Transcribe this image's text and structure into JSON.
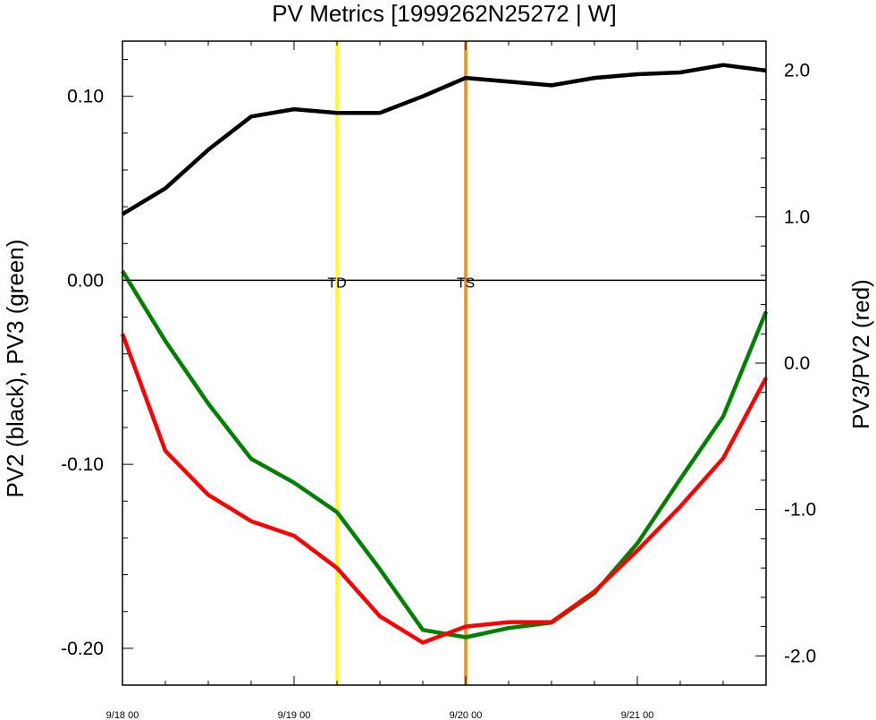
{
  "chart_data": {
    "type": "line",
    "title": "PV Metrics [1999262N25272 | W]",
    "ylabel_left": "PV2 (black), PV3 (green)",
    "ylabel_right": "PV3/PV2 (red)",
    "xlim": [
      0,
      3.75
    ],
    "ylim_left": [
      -0.22,
      0.13
    ],
    "ylim_right": [
      -2.2,
      2.2
    ],
    "x_ticks": [
      {
        "x": 0,
        "label": "9/18 00"
      },
      {
        "x": 1,
        "label": "9/19 00"
      },
      {
        "x": 2,
        "label": "9/20 00"
      },
      {
        "x": 3,
        "label": "9/21 00"
      }
    ],
    "y_ticks_left": [
      {
        "value": 0.1,
        "label": "0.10"
      },
      {
        "value": 0.0,
        "label": "0.00"
      },
      {
        "value": -0.1,
        "label": "-0.10"
      },
      {
        "value": -0.2,
        "label": "-0.20"
      }
    ],
    "y_ticks_right": [
      {
        "value": 2.0,
        "label": "2.0"
      },
      {
        "value": 1.0,
        "label": "1.0"
      },
      {
        "value": 0.0,
        "label": "0.0"
      },
      {
        "value": -1.0,
        "label": "-1.0"
      },
      {
        "value": -2.0,
        "label": "-2.0"
      }
    ],
    "x": [
      0,
      0.25,
      0.5,
      0.75,
      1.0,
      1.25,
      1.5,
      1.75,
      2.0,
      2.25,
      2.5,
      2.75,
      3.0,
      3.25,
      3.5,
      3.75
    ],
    "series": [
      {
        "axis": "left",
        "color": "#000000",
        "values": [
          0.036,
          0.05,
          0.071,
          0.089,
          0.093,
          0.091,
          0.091,
          0.1,
          0.11,
          0.108,
          0.106,
          0.11,
          0.112,
          0.113,
          0.117,
          0.114
        ]
      },
      {
        "axis": "left",
        "color": "#008000",
        "values": [
          0.005,
          -0.033,
          -0.067,
          -0.097,
          -0.11,
          -0.126,
          -0.157,
          -0.19,
          -0.194,
          -0.189,
          -0.186,
          -0.17,
          -0.143,
          -0.108,
          -0.074,
          -0.017
        ]
      },
      {
        "axis": "right",
        "color": "#ff0000",
        "values": [
          0.2,
          -0.6,
          -0.9,
          -1.08,
          -1.18,
          -1.4,
          -1.73,
          -1.91,
          -1.8,
          -1.77,
          -1.77,
          -1.56,
          -1.28,
          -0.98,
          -0.65,
          -0.1
        ]
      }
    ],
    "zero_line_left": 0.0,
    "annotations": [
      {
        "x": 1.25,
        "label": "TD",
        "color": "#ffff00"
      },
      {
        "x": 2.0,
        "label": "TS",
        "color": "#ff8c00"
      }
    ],
    "grid": false,
    "legend": "none"
  }
}
